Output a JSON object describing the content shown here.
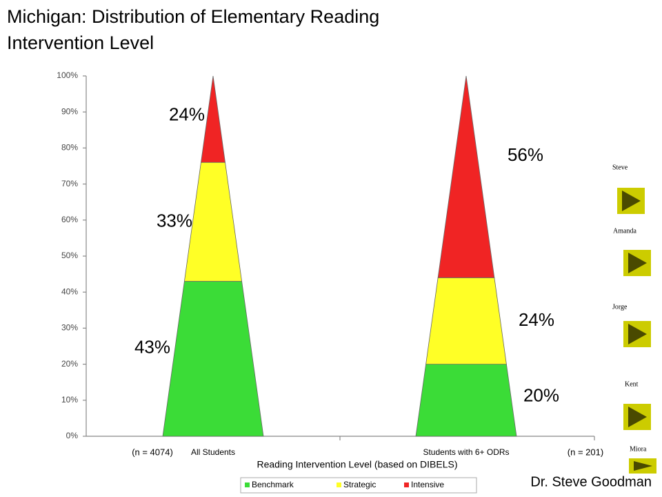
{
  "chart_data": {
    "type": "pyramid",
    "title": "Michigan: Distribution of Elementary Reading Intervention Level",
    "x_label": "Reading Intervention Level (based on DIBELS)",
    "categories": [
      "All Students",
      "Students with 6+ ODRs"
    ],
    "category_notes": [
      "(n = 4074)",
      "(n = 201)"
    ],
    "series": [
      {
        "name": "Benchmark",
        "color": "#3bdc37",
        "values": [
          43,
          20
        ],
        "value_labels": [
          "43%",
          "20%"
        ]
      },
      {
        "name": "Strategic",
        "color": "#ffff26",
        "values": [
          33,
          24
        ],
        "value_labels": [
          "33%",
          "24%"
        ]
      },
      {
        "name": "Intensive",
        "color": "#f02424",
        "values": [
          24,
          56
        ],
        "value_labels": [
          "24%",
          "56%"
        ]
      }
    ],
    "ylim": [
      0,
      100
    ],
    "yticks": [
      {
        "value": 0,
        "label": "0%"
      },
      {
        "value": 10,
        "label": "10%"
      },
      {
        "value": 20,
        "label": "20%"
      },
      {
        "value": 30,
        "label": "30%"
      },
      {
        "value": 40,
        "label": "40%"
      },
      {
        "value": 50,
        "label": "50%"
      },
      {
        "value": 60,
        "label": "60%"
      },
      {
        "value": 70,
        "label": "70%"
      },
      {
        "value": 80,
        "label": "80%"
      },
      {
        "value": 90,
        "label": "90%"
      },
      {
        "value": 100,
        "label": "100%"
      }
    ],
    "legend": "bottom"
  },
  "author": "Dr. Steve Goodman",
  "links": [
    "Steve",
    "Amanda",
    "Jorge",
    "Kent",
    "Miora"
  ]
}
